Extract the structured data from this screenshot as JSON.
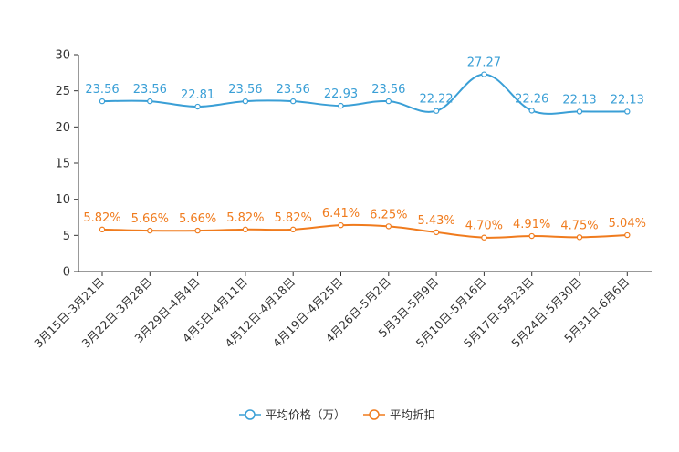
{
  "chart_data": {
    "type": "line",
    "title": "",
    "xlabel": "",
    "ylabel": "",
    "ylim": [
      0,
      30
    ],
    "yticks": [
      0,
      5,
      10,
      15,
      20,
      25,
      30
    ],
    "categories": [
      "3月15日-3月21日",
      "3月22日-3月28日",
      "3月29日-4月4日",
      "4月5日-4月11日",
      "4月12日-4月18日",
      "4月19日-4月25日",
      "4月26日-5月2日",
      "5月3日-5月9日",
      "5月10日-5月16日",
      "5月17日-5月23日",
      "5月24日-5月30日",
      "5月31日-6月6日"
    ],
    "series": [
      {
        "name": "平均价格（万）",
        "color": "#3a9fd6",
        "values": [
          23.56,
          23.56,
          22.81,
          23.56,
          23.56,
          22.93,
          23.56,
          22.22,
          27.27,
          22.26,
          22.13,
          22.13
        ],
        "labels": [
          "23.56",
          "23.56",
          "22.81",
          "23.56",
          "23.56",
          "22.93",
          "23.56",
          "22.22",
          "27.27",
          "22.26",
          "22.13",
          "22.13"
        ]
      },
      {
        "name": "平均折扣",
        "color": "#f07b1d",
        "values": [
          5.82,
          5.66,
          5.66,
          5.82,
          5.82,
          6.41,
          6.25,
          5.43,
          4.7,
          4.91,
          4.75,
          5.04
        ],
        "labels": [
          "5.82%",
          "5.66%",
          "5.66%",
          "5.82%",
          "5.82%",
          "6.41%",
          "6.25%",
          "5.43%",
          "4.70%",
          "4.91%",
          "4.75%",
          "5.04%"
        ]
      }
    ],
    "grid": false,
    "legend": "bottom-center"
  }
}
